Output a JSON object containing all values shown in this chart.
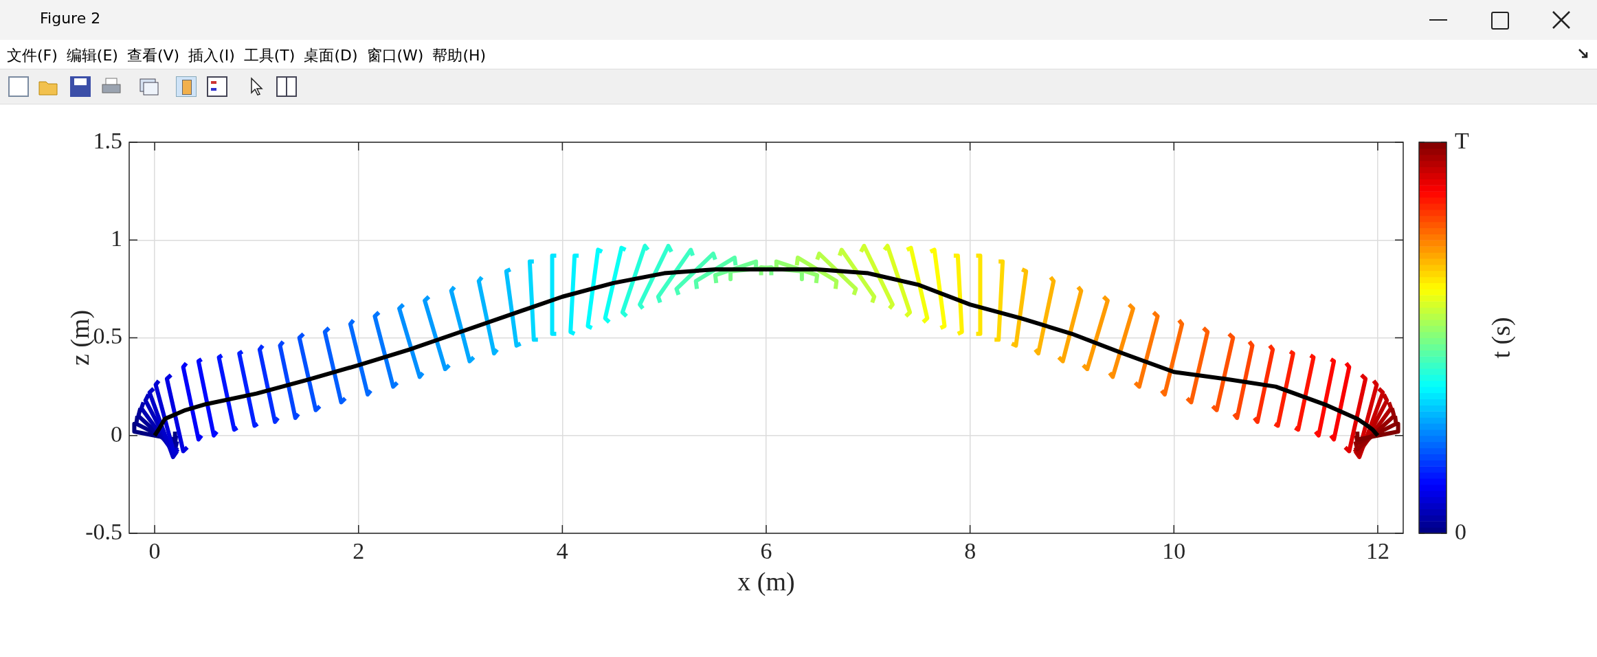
{
  "chart_data": {
    "type": "line",
    "title": "Figure 2",
    "xlabel": "x (m)",
    "ylabel": "z (m)",
    "clabel": "t (s)",
    "annotations": [
      "文件(F)",
      "编辑(E)",
      "查看(V)",
      "插入(I)",
      "工具(T)",
      "桌面(D)",
      "窗口(W)",
      "帮助(H)"
    ],
    "xlim": [
      -0.25,
      12.25
    ],
    "xticks": [
      0,
      2,
      4,
      6,
      8,
      10,
      12
    ],
    "ylim": [
      -0.5,
      1.5
    ],
    "yticks": [
      -0.5,
      0,
      0.5,
      1,
      1.5
    ],
    "clim": [
      0,
      1
    ],
    "cticks": [
      {
        "value": 0,
        "label": "0"
      },
      {
        "value": 1,
        "label": "T"
      }
    ],
    "grid": true,
    "series": [
      {
        "color": "#000080",
        "x": [
          -0.2,
          -0.2,
          0.2,
          0.2
        ],
        "values": [
          0.06,
          0.02,
          -0.02,
          0.02
        ]
      },
      {
        "color": "#00008c",
        "x": [
          -0.17,
          -0.18,
          0.2,
          0.21
        ],
        "values": [
          0.1,
          0.06,
          -0.04,
          0.0
        ]
      },
      {
        "color": "#000098",
        "x": [
          -0.14,
          -0.16,
          0.2,
          0.22
        ],
        "values": [
          0.14,
          0.1,
          -0.07,
          -0.03
        ]
      },
      {
        "color": "#0000b1",
        "x": [
          -0.11,
          -0.13,
          0.19,
          0.22
        ],
        "values": [
          0.17,
          0.14,
          -0.09,
          -0.06
        ]
      },
      {
        "color": "#0000bd",
        "x": [
          -0.06,
          -0.09,
          0.19,
          0.22
        ],
        "values": [
          0.21,
          0.18,
          -0.1,
          -0.07
        ]
      },
      {
        "color": "#0000c9",
        "x": [
          -0.01,
          -0.05,
          0.18,
          0.22
        ],
        "values": [
          0.24,
          0.22,
          -0.11,
          -0.08
        ]
      },
      {
        "color": "#0000d5",
        "x": [
          0.04,
          0.01,
          0.19,
          0.23
        ],
        "values": [
          0.28,
          0.26,
          -0.09,
          -0.07
        ]
      },
      {
        "color": "#0000e2",
        "x": [
          0.16,
          0.12,
          0.28,
          0.32
        ],
        "values": [
          0.31,
          0.29,
          -0.08,
          -0.06
        ]
      },
      {
        "color": "#0000fa",
        "x": [
          0.31,
          0.28,
          0.43,
          0.46
        ],
        "values": [
          0.37,
          0.35,
          -0.02,
          0.0
        ]
      },
      {
        "color": "#0008ff",
        "x": [
          0.46,
          0.43,
          0.58,
          0.61
        ],
        "values": [
          0.39,
          0.38,
          0.0,
          0.02
        ]
      },
      {
        "color": "#0014ff",
        "x": [
          0.66,
          0.63,
          0.78,
          0.81
        ],
        "values": [
          0.41,
          0.4,
          0.03,
          0.04
        ]
      },
      {
        "color": "#0020ff",
        "x": [
          0.86,
          0.83,
          0.98,
          1.01
        ],
        "values": [
          0.43,
          0.42,
          0.05,
          0.06
        ]
      },
      {
        "color": "#002dff",
        "x": [
          1.06,
          1.03,
          1.18,
          1.21
        ],
        "values": [
          0.46,
          0.44,
          0.07,
          0.09
        ]
      },
      {
        "color": "#0045ff",
        "x": [
          1.26,
          1.23,
          1.38,
          1.41
        ],
        "values": [
          0.48,
          0.46,
          0.09,
          0.11
        ]
      },
      {
        "color": "#0051ff",
        "x": [
          1.46,
          1.42,
          1.58,
          1.62
        ],
        "values": [
          0.52,
          0.5,
          0.13,
          0.15
        ]
      },
      {
        "color": "#005eff",
        "x": [
          1.71,
          1.67,
          1.83,
          1.87
        ],
        "values": [
          0.55,
          0.53,
          0.17,
          0.19
        ]
      },
      {
        "color": "#006aff",
        "x": [
          1.95,
          1.92,
          2.09,
          2.12
        ],
        "values": [
          0.59,
          0.57,
          0.21,
          0.23
        ]
      },
      {
        "color": "#0076ff",
        "x": [
          2.2,
          2.16,
          2.34,
          2.38
        ],
        "values": [
          0.63,
          0.61,
          0.25,
          0.27
        ]
      },
      {
        "color": "#008fff",
        "x": [
          2.44,
          2.4,
          2.6,
          2.63
        ],
        "values": [
          0.67,
          0.65,
          0.3,
          0.32
        ]
      },
      {
        "color": "#009bff",
        "x": [
          2.69,
          2.65,
          2.85,
          2.89
        ],
        "values": [
          0.71,
          0.69,
          0.34,
          0.36
        ]
      },
      {
        "color": "#00a7ff",
        "x": [
          2.94,
          2.91,
          3.09,
          3.13
        ],
        "values": [
          0.76,
          0.74,
          0.38,
          0.4
        ]
      },
      {
        "color": "#00b4ff",
        "x": [
          3.21,
          3.18,
          3.33,
          3.36
        ],
        "values": [
          0.81,
          0.79,
          0.42,
          0.44
        ]
      },
      {
        "color": "#00c0ff",
        "x": [
          3.49,
          3.45,
          3.55,
          3.59
        ],
        "values": [
          0.85,
          0.84,
          0.46,
          0.47
        ]
      },
      {
        "color": "#00d8ff",
        "x": [
          3.72,
          3.68,
          3.72,
          3.76
        ],
        "values": [
          0.89,
          0.89,
          0.49,
          0.49
        ]
      },
      {
        "color": "#00e5ff",
        "x": [
          3.94,
          3.9,
          3.9,
          3.94
        ],
        "values": [
          0.92,
          0.92,
          0.52,
          0.52
        ]
      },
      {
        "color": "#00f1ff",
        "x": [
          4.16,
          4.12,
          4.08,
          4.12
        ],
        "values": [
          0.92,
          0.92,
          0.53,
          0.52
        ]
      },
      {
        "color": "#00fdff",
        "x": [
          4.39,
          4.35,
          4.25,
          4.29
        ],
        "values": [
          0.94,
          0.95,
          0.56,
          0.55
        ]
      },
      {
        "color": "#0bfff4",
        "x": [
          4.62,
          4.58,
          4.42,
          4.46
        ],
        "values": [
          0.95,
          0.96,
          0.6,
          0.58
        ]
      },
      {
        "color": "#23ffdb",
        "x": [
          4.84,
          4.81,
          4.59,
          4.63
        ],
        "values": [
          0.95,
          0.97,
          0.63,
          0.61
        ]
      },
      {
        "color": "#30ffcf",
        "x": [
          5.07,
          5.04,
          4.76,
          4.79
        ],
        "values": [
          0.94,
          0.97,
          0.67,
          0.65
        ]
      },
      {
        "color": "#3cffc3",
        "x": [
          5.28,
          5.26,
          4.94,
          4.96
        ],
        "values": [
          0.92,
          0.95,
          0.71,
          0.68
        ]
      },
      {
        "color": "#48ffb7",
        "x": [
          5.5,
          5.48,
          5.12,
          5.14
        ],
        "values": [
          0.9,
          0.93,
          0.75,
          0.72
        ]
      },
      {
        "color": "#54ffaa",
        "x": [
          5.7,
          5.69,
          5.31,
          5.32
        ],
        "values": [
          0.87,
          0.91,
          0.79,
          0.75
        ]
      },
      {
        "color": "#6dff92",
        "x": [
          5.9,
          5.9,
          5.5,
          5.51
        ],
        "values": [
          0.85,
          0.89,
          0.82,
          0.78
        ]
      },
      {
        "color": "#79ff86",
        "x": [
          6.05,
          6.05,
          5.65,
          5.65
        ],
        "values": [
          0.82,
          0.86,
          0.84,
          0.8
        ]
      },
      {
        "color": "#86ff79",
        "x": [
          5.95,
          5.95,
          6.35,
          6.35
        ],
        "values": [
          0.82,
          0.86,
          0.84,
          0.8
        ]
      },
      {
        "color": "#92ff6d",
        "x": [
          6.1,
          6.1,
          6.5,
          6.49
        ],
        "values": [
          0.85,
          0.89,
          0.82,
          0.78
        ]
      },
      {
        "color": "#aaff54",
        "x": [
          6.3,
          6.31,
          6.69,
          6.68
        ],
        "values": [
          0.87,
          0.91,
          0.79,
          0.75
        ]
      },
      {
        "color": "#b7ff48",
        "x": [
          6.5,
          6.52,
          6.88,
          6.86
        ],
        "values": [
          0.9,
          0.93,
          0.75,
          0.72
        ]
      },
      {
        "color": "#c3ff3c",
        "x": [
          6.72,
          6.74,
          7.06,
          7.04
        ],
        "values": [
          0.92,
          0.95,
          0.71,
          0.68
        ]
      },
      {
        "color": "#cfff30",
        "x": [
          6.93,
          6.96,
          7.24,
          7.21
        ],
        "values": [
          0.94,
          0.97,
          0.67,
          0.65
        ]
      },
      {
        "color": "#dbff23",
        "x": [
          7.16,
          7.19,
          7.41,
          7.37
        ],
        "values": [
          0.95,
          0.97,
          0.63,
          0.61
        ]
      },
      {
        "color": "#f4ff0b",
        "x": [
          7.38,
          7.42,
          7.58,
          7.54
        ],
        "values": [
          0.95,
          0.96,
          0.6,
          0.58
        ]
      },
      {
        "color": "#fffd00",
        "x": [
          7.61,
          7.65,
          7.75,
          7.71
        ],
        "values": [
          0.94,
          0.95,
          0.56,
          0.55
        ]
      },
      {
        "color": "#fff100",
        "x": [
          7.84,
          7.88,
          7.92,
          7.88
        ],
        "values": [
          0.92,
          0.92,
          0.53,
          0.52
        ]
      },
      {
        "color": "#ffe500",
        "x": [
          8.06,
          8.1,
          8.1,
          8.06
        ],
        "values": [
          0.92,
          0.92,
          0.52,
          0.52
        ]
      },
      {
        "color": "#ffd800",
        "x": [
          8.28,
          8.32,
          8.28,
          8.24
        ],
        "values": [
          0.89,
          0.89,
          0.49,
          0.49
        ]
      },
      {
        "color": "#ffc000",
        "x": [
          8.51,
          8.55,
          8.45,
          8.41
        ],
        "values": [
          0.85,
          0.84,
          0.46,
          0.47
        ]
      },
      {
        "color": "#ffb400",
        "x": [
          8.79,
          8.82,
          8.67,
          8.64
        ],
        "values": [
          0.81,
          0.79,
          0.42,
          0.44
        ]
      },
      {
        "color": "#ffa700",
        "x": [
          9.06,
          9.09,
          8.91,
          8.87
        ],
        "values": [
          0.76,
          0.74,
          0.38,
          0.4
        ]
      },
      {
        "color": "#ff9b00",
        "x": [
          9.31,
          9.35,
          9.15,
          9.11
        ],
        "values": [
          0.71,
          0.69,
          0.34,
          0.36
        ]
      },
      {
        "color": "#ff8f00",
        "x": [
          9.56,
          9.6,
          9.4,
          9.37
        ],
        "values": [
          0.67,
          0.65,
          0.3,
          0.32
        ]
      },
      {
        "color": "#ff7600",
        "x": [
          9.8,
          9.84,
          9.66,
          9.62
        ],
        "values": [
          0.63,
          0.61,
          0.25,
          0.27
        ]
      },
      {
        "color": "#ff6a00",
        "x": [
          10.05,
          10.08,
          9.91,
          9.88
        ],
        "values": [
          0.59,
          0.57,
          0.21,
          0.23
        ]
      },
      {
        "color": "#ff5e00",
        "x": [
          10.29,
          10.33,
          10.17,
          10.13
        ],
        "values": [
          0.55,
          0.53,
          0.17,
          0.19
        ]
      },
      {
        "color": "#ff5100",
        "x": [
          10.54,
          10.58,
          10.42,
          10.38
        ],
        "values": [
          0.52,
          0.5,
          0.13,
          0.15
        ]
      },
      {
        "color": "#ff4500",
        "x": [
          10.74,
          10.77,
          10.62,
          10.59
        ],
        "values": [
          0.48,
          0.46,
          0.09,
          0.11
        ]
      },
      {
        "color": "#ff2d00",
        "x": [
          10.94,
          10.97,
          10.82,
          10.79
        ],
        "values": [
          0.46,
          0.44,
          0.07,
          0.09
        ]
      },
      {
        "color": "#ff2000",
        "x": [
          11.14,
          11.17,
          11.02,
          10.99
        ],
        "values": [
          0.43,
          0.42,
          0.05,
          0.06
        ]
      },
      {
        "color": "#ff1400",
        "x": [
          11.34,
          11.37,
          11.22,
          11.19
        ],
        "values": [
          0.41,
          0.4,
          0.03,
          0.04
        ]
      },
      {
        "color": "#ff0800",
        "x": [
          11.54,
          11.57,
          11.42,
          11.39
        ],
        "values": [
          0.39,
          0.38,
          0.0,
          0.02
        ]
      },
      {
        "color": "#fa0000",
        "x": [
          11.69,
          11.72,
          11.57,
          11.54
        ],
        "values": [
          0.37,
          0.35,
          -0.02,
          0.0
        ]
      },
      {
        "color": "#e20000",
        "x": [
          11.84,
          11.88,
          11.72,
          11.68
        ],
        "values": [
          0.31,
          0.29,
          -0.08,
          -0.06
        ]
      },
      {
        "color": "#d50000",
        "x": [
          11.96,
          11.99,
          11.81,
          11.77
        ],
        "values": [
          0.28,
          0.26,
          -0.09,
          -0.07
        ]
      },
      {
        "color": "#c90000",
        "x": [
          12.01,
          12.05,
          11.82,
          11.78
        ],
        "values": [
          0.24,
          0.22,
          -0.11,
          -0.08
        ]
      },
      {
        "color": "#bd0000",
        "x": [
          12.06,
          12.09,
          11.81,
          11.78
        ],
        "values": [
          0.21,
          0.18,
          -0.1,
          -0.07
        ]
      },
      {
        "color": "#b10000",
        "x": [
          12.11,
          12.13,
          11.81,
          11.78
        ],
        "values": [
          0.17,
          0.14,
          -0.09,
          -0.06
        ]
      },
      {
        "color": "#980000",
        "x": [
          12.14,
          12.16,
          11.8,
          11.78
        ],
        "values": [
          0.14,
          0.1,
          -0.07,
          -0.03
        ]
      },
      {
        "color": "#8c0000",
        "x": [
          12.17,
          12.18,
          11.8,
          11.79
        ],
        "values": [
          0.1,
          0.06,
          -0.04,
          0.0
        ]
      },
      {
        "color": "#800000",
        "x": [
          12.2,
          12.2,
          11.8,
          11.8
        ],
        "values": [
          0.06,
          0.02,
          -0.02,
          0.02
        ]
      },
      {
        "color": "#000000",
        "x": [
          0,
          0.05,
          0.1,
          0.3,
          0.5,
          1,
          1.5,
          2,
          2.5,
          3,
          3.5,
          4,
          4.5,
          5,
          5.5,
          6,
          6.5,
          7,
          7.5,
          8,
          8.5,
          9,
          9.5,
          10,
          10.5,
          11,
          11.5,
          11.8,
          11.9,
          11.95,
          12
        ],
        "values": [
          0,
          0.04,
          0.085,
          0.13,
          0.16,
          0.215,
          0.285,
          0.36,
          0.44,
          0.53,
          0.62,
          0.71,
          0.78,
          0.83,
          0.85,
          0.85,
          0.85,
          0.83,
          0.77,
          0.67,
          0.6,
          0.52,
          0.42,
          0.325,
          0.29,
          0.25,
          0.155,
          0.085,
          0.05,
          0.03,
          0
        ]
      }
    ]
  }
}
